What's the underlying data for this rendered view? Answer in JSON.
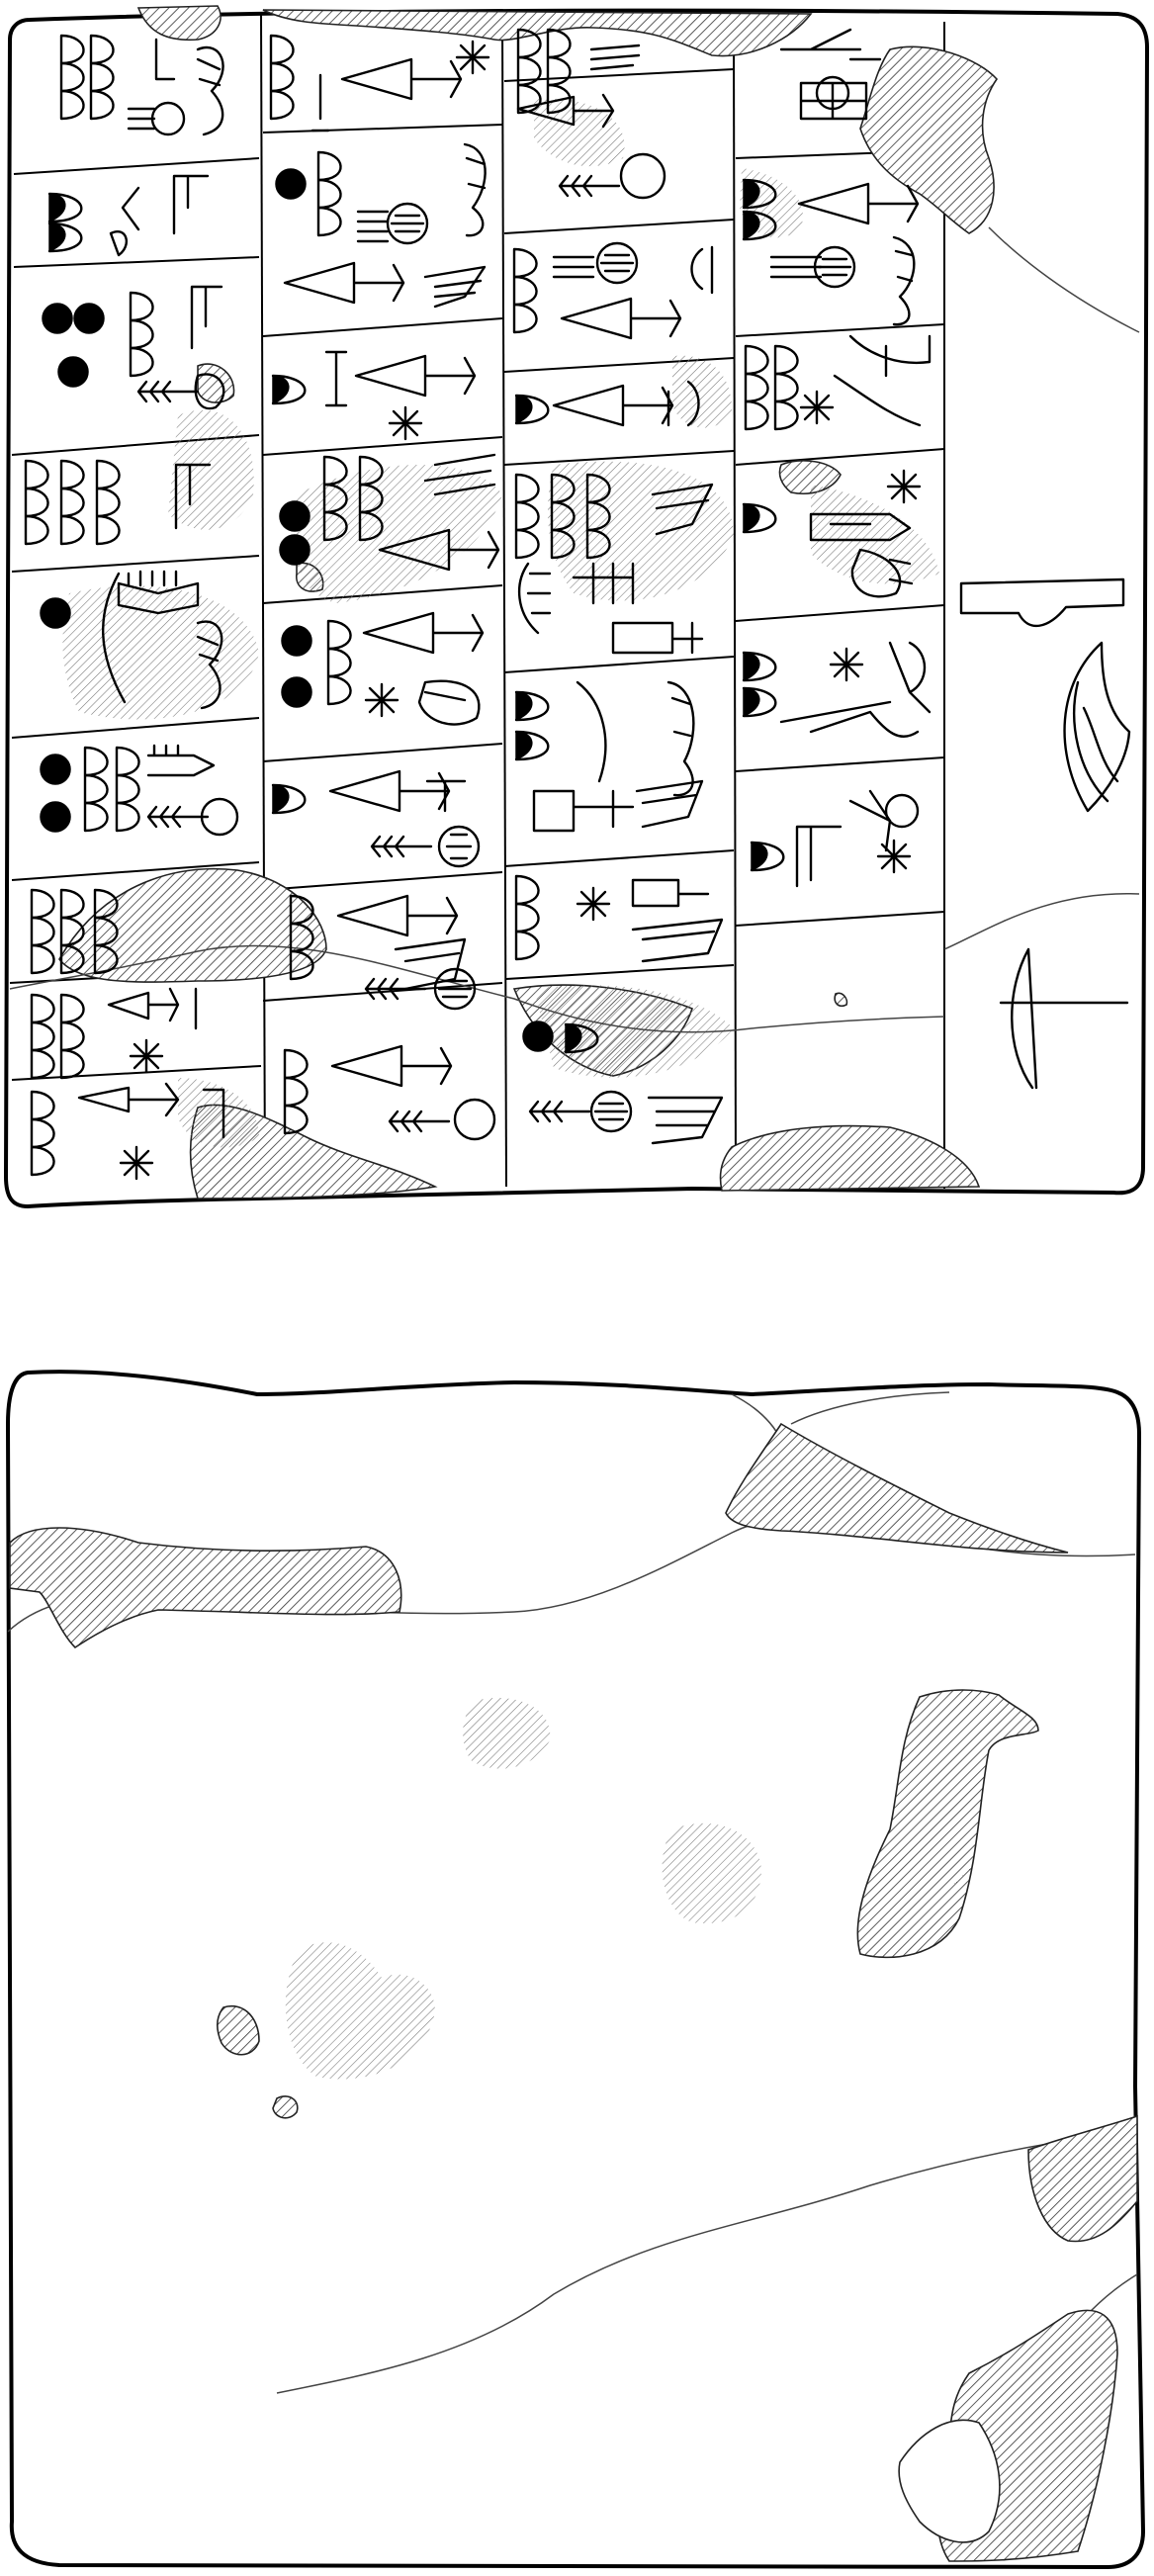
{
  "drawing": {
    "kind": "tablet-line-drawing",
    "faces": [
      "obverse",
      "reverse"
    ],
    "colors": {
      "ink": "#000000",
      "background": "#ffffff",
      "hatch": "#333333"
    }
  }
}
